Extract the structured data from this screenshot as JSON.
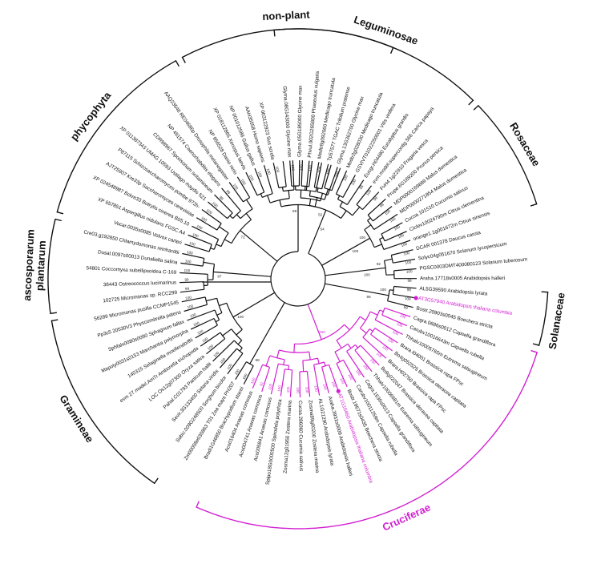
{
  "clades": [
    {
      "name": "Leguminosae",
      "from": 0,
      "to": 10,
      "highlight": false
    },
    {
      "name": "Rosaceae",
      "from": 11,
      "to": 16,
      "highlight": false
    },
    {
      "name": "Solanaceae",
      "from": 21,
      "to": 23,
      "highlight": false
    },
    {
      "name": "Cruciferae",
      "from": 24,
      "to": 44,
      "highlight": true
    },
    {
      "name": "Gramineae",
      "from": 47,
      "to": 56,
      "highlight": false
    },
    {
      "name": "ascosporarum plantarum",
      "from": 57,
      "to": 61,
      "highlight": false
    },
    {
      "name": "phycophyta",
      "from": 62,
      "to": 71,
      "highlight": false
    },
    {
      "name": "non-plant",
      "from": 72,
      "to": 82,
      "highlight": false
    }
  ],
  "leaves": [
    {
      "label": "Glyma.08G143000 Glycine max",
      "boot": "100"
    },
    {
      "label": "Glyma.05G185000 Glycine max",
      "boot": "100"
    },
    {
      "label": "Phvul.002G265800 Phaseolus vulgaris",
      "boot": "100"
    },
    {
      "label": "Medtr8g092060 Medicago truncatula",
      "boot": "100"
    },
    {
      "label": "Tp57577 TGAC Trifolium pratense",
      "boot": "100"
    },
    {
      "label": "Glyma.13G362700 Glycine max",
      "boot": "100"
    },
    {
      "label": "Medtr2g028030 Medicago truncatula",
      "boot": "100"
    },
    {
      "label": "GSVIVT01022250001 Vitis vinifera",
      "boot": "100"
    },
    {
      "label": "Eucgr.H04480 Eucalyptus grandis",
      "boot": "85"
    },
    {
      "label": "evm.model.supercontig 566 Carica papaya",
      "boot": "100"
    },
    {
      "label": "FvH4 1g22910 Fragaria vesca",
      "boot": "99"
    },
    {
      "label": "Prupe.6G169200 Prunus persica",
      "boot": "98"
    },
    {
      "label": "MDP0000169889 Malus domestica",
      "boot": "100"
    },
    {
      "label": "MDP0000271854 Malus domestica",
      "boot": "100"
    },
    {
      "label": "Cucsa.101510 Cucumis sativus",
      "boot": "100"
    },
    {
      "label": "Ciclev10024790m Citrus clementina",
      "boot": "100"
    },
    {
      "label": "orange1.1g001672m Citrus sinensis",
      "boot": "100"
    },
    {
      "label": "DCAR 001378 Daucus carota",
      "boot": "100"
    },
    {
      "label": "Solyc04g051670 Solanum lycopersicum",
      "boot": "100"
    },
    {
      "label": "PGSC0003DMT400080123 Solanum tuberosum",
      "boot": "100"
    },
    {
      "label": "Araha.17718s0005 Arabidopsis halleri",
      "boot": "99"
    },
    {
      "label": "AL5G39590 Arabidopsis lyrata",
      "boot": "98"
    },
    {
      "label": "AT3G57940 Arabidopsis thaliana columbia",
      "boot": "100",
      "highlight": true,
      "marker": true
    },
    {
      "label": "Bostr.20903s0045 Boechera stricta",
      "boot": "99"
    },
    {
      "label": "Cagra.0686s0012 Capsella grandiflora",
      "boot": "100"
    },
    {
      "label": "Carubv10016643m Capsella rubella",
      "boot": "100"
    },
    {
      "label": "Thhalv10005765m Eutrema salsugineum",
      "boot": "100"
    },
    {
      "label": "Brara.I04001 Brassica rapa FPsc",
      "boot": "100"
    },
    {
      "label": "Bo4g052525 Brassica oleracea capitata",
      "boot": "100"
    },
    {
      "label": "Brara.H02760 Brassica rapa FPsc",
      "boot": "100"
    },
    {
      "label": "Bo9g022047 Brassica oleracea capitata",
      "boot": "100"
    },
    {
      "label": "Thhalv10006681m Eutrema salsugineum",
      "boot": "100"
    },
    {
      "label": "Cagra.1636s0013 Capsella grandiflora",
      "boot": "100"
    },
    {
      "label": "Carubv10011259m Capsella rubella",
      "boot": "100"
    },
    {
      "label": "Bostr.19671s0435 Boechera stricta",
      "boot": "100"
    },
    {
      "label": "AT1G16460 Arabidopsis thaliana columbia",
      "boot": "100",
      "highlight": true,
      "marker": true
    },
    {
      "label": "Araha.3931s0009 Arabidopsis halleri",
      "boot": "100"
    },
    {
      "label": "AL1G21290 Arabidopsis lyrata",
      "boot": "100"
    },
    {
      "label": "Zosma89g00200 Zostera marina",
      "boot": "100"
    },
    {
      "label": "Cucsa.286060 Cucumis sativus",
      "boot": "100"
    },
    {
      "label": "Zosma12g01950 Zostera marina",
      "boot": "100"
    },
    {
      "label": "Spipo18G0000500 Spirodela polyrhiza",
      "boot": "100"
    },
    {
      "label": "Aco005841 Ananas comosus",
      "boot": "100"
    },
    {
      "label": "Aco004741 Ananas comosus",
      "boot": "91"
    },
    {
      "label": "Aco016404 Ananas comosus",
      "boot": "100"
    },
    {
      "label": "Bradi1G46850 Brachypodium stacei",
      "boot": "100"
    },
    {
      "label": "Zm00008e030863 T01 Zea mays PH207",
      "boot": "100"
    },
    {
      "label": "Sobic.009G248500 Sorghum bicolor",
      "boot": "100"
    },
    {
      "label": "Sevir.3G133400 Setaria viridis",
      "boot": "100"
    },
    {
      "label": "Pahal.C01793 Panicum hallii",
      "boot": "100"
    },
    {
      "label": "LOC Os12g07300 Oryza sativa",
      "boot": "100"
    },
    {
      "label": "evm 27.model.AmTr Amborella trichopoda",
      "boot": "100"
    },
    {
      "label": "140315 Selaginella moellendorffii",
      "boot": "100"
    },
    {
      "label": "Mapoly0031s0153 Marchantia polymorpha",
      "boot": "100"
    },
    {
      "label": "Sphfalx0080s0090 Sphagnum fallax",
      "boot": "100"
    },
    {
      "label": "Pp3c5 20530V3 Physcomitrella patens",
      "boot": "100"
    },
    {
      "label": "56289 Micromonas pusilla CCMP1545",
      "boot": "100"
    },
    {
      "label": "102725 Micromonas sp. RCC299",
      "boot": "99"
    },
    {
      "label": "38443 Ostreococcus lucimarinus",
      "boot": "99"
    },
    {
      "label": "54801 Coccomyxa subellipsoidea C-169",
      "boot": "100"
    },
    {
      "label": "Dusal.0097s00013 Dunaliella salina",
      "boot": "100"
    },
    {
      "label": "Cre03.g192850 Chlamydomonas reinhardtii",
      "boot": "100"
    },
    {
      "label": "Vocar.0035s0085 Volvox carteri",
      "boot": "100"
    },
    {
      "label": "XP 657851 Aspergillus nidulans FGSC A4",
      "boot": "100"
    },
    {
      "label": "XP 024548987 Bckre33 Botrytis cinerea B05.10",
      "boot": "100"
    },
    {
      "label": "AJT25907 Kre33p Saccharomyces cerevisiae",
      "boot": "100"
    },
    {
      "label": "P87115 Schizosaccharomyces pombe 972h-",
      "boot": "100"
    },
    {
      "label": "XP 011387343 UMAG 10593 Ustilago maydis 521",
      "boot": "100"
    },
    {
      "label": "CDR98967 Sporisorium scitamineum",
      "boot": "98"
    },
    {
      "label": "NP 491574 Caenorhabditis elegans",
      "boot": "99"
    },
    {
      "label": "AAQ23546 RE04686p Drosophila melanogaster",
      "boot": "100"
    },
    {
      "label": "NP 956528 Danio rerio",
      "boot": "100"
    },
    {
      "label": "XP 018112865 Xenopus laevis",
      "boot": "100"
    },
    {
      "label": "NP 001012586 Gallus gallus",
      "boot": "100"
    },
    {
      "label": "AAH35558 Homo sapiens",
      "boot": "100"
    },
    {
      "label": "XP 003122923 Sus scrofa",
      "boot": "100"
    }
  ],
  "internal_boot": [
    "52",
    "100",
    "92",
    "100",
    "100",
    "98",
    "100",
    "97",
    "72",
    "89",
    "54",
    "100",
    "100",
    "96"
  ]
}
